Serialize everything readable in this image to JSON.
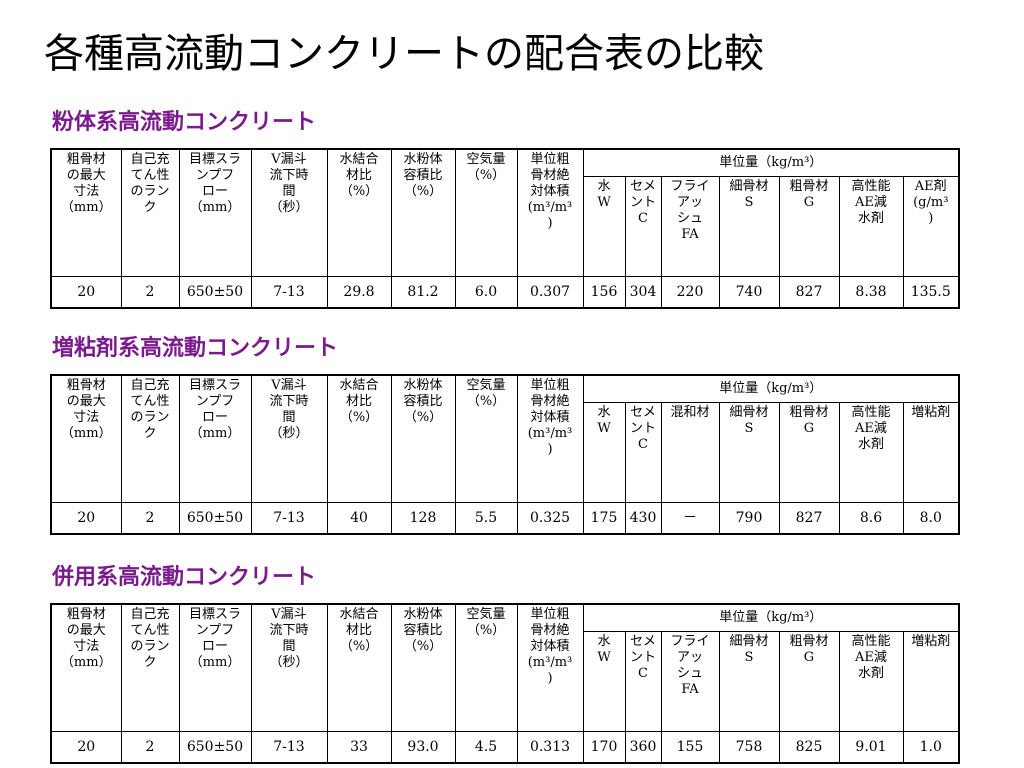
{
  "page_title": "各種高流動コンクリートの配合表の比較",
  "colors": {
    "heading_accent": "#7a1a8c",
    "border": "#000000"
  },
  "sections": [
    {
      "heading": "粉体系高流動コンクリート",
      "headers": [
        [
          "粗骨材",
          "の最大",
          "寸法",
          "（mm）"
        ],
        [
          "自己充",
          "てん性",
          "のラン",
          "ク"
        ],
        [
          "目標スラ",
          "ンプフ",
          "ロー",
          "（mm）"
        ],
        [
          "V漏斗",
          "流下時",
          "間",
          "（秒）"
        ],
        [
          "水結合",
          "材比",
          "（%）"
        ],
        [
          "水粉体",
          "容積比",
          "（%）"
        ],
        [
          "空気量",
          "（%）"
        ],
        [
          "単位粗",
          "骨材絶",
          "対体積",
          "(m³/m³",
          ")"
        ]
      ],
      "unit_group": "単位量（kg/m³）",
      "unit_headers": [
        [
          "水",
          "W"
        ],
        [
          "セメ",
          "ント",
          "C"
        ],
        [
          "フライ",
          "アッ",
          "シュ",
          "FA"
        ],
        [
          "細骨材",
          "S"
        ],
        [
          "粗骨材",
          "G"
        ],
        [
          "高性能",
          "AE減",
          "水剤"
        ],
        [
          "AE剤",
          "(g/m³",
          ")"
        ]
      ],
      "values": [
        "20",
        "2",
        "650±50",
        "7-13",
        "29.8",
        "81.2",
        "6.0",
        "0.307",
        "156",
        "304",
        "220",
        "740",
        "827",
        "8.38",
        "135.5"
      ]
    },
    {
      "heading": "増粘剤系高流動コンクリート",
      "headers": [
        [
          "粗骨材",
          "の最大",
          "寸法",
          "（mm）"
        ],
        [
          "自己充",
          "てん性",
          "のラン",
          "ク"
        ],
        [
          "目標スラ",
          "ンプフ",
          "ロー",
          "（mm）"
        ],
        [
          "V漏斗",
          "流下時",
          "間",
          "（秒）"
        ],
        [
          "水結合",
          "材比",
          "（%）"
        ],
        [
          "水粉体",
          "容積比",
          "（%）"
        ],
        [
          "空気量",
          "（%）"
        ],
        [
          "単位粗",
          "骨材絶",
          "対体積",
          "(m³/m³",
          ")"
        ]
      ],
      "unit_group": "単位量（kg/m³）",
      "unit_headers": [
        [
          "水",
          "W"
        ],
        [
          "セメ",
          "ント",
          "C"
        ],
        [
          "混和材"
        ],
        [
          "細骨材",
          "S"
        ],
        [
          "粗骨材",
          "G"
        ],
        [
          "高性能",
          "AE減",
          "水剤"
        ],
        [
          "増粘剤"
        ]
      ],
      "values": [
        "20",
        "2",
        "650±50",
        "7-13",
        "40",
        "128",
        "5.5",
        "0.325",
        "175",
        "430",
        "－",
        "790",
        "827",
        "8.6",
        "8.0"
      ]
    },
    {
      "heading": "併用系高流動コンクリート",
      "headers": [
        [
          "粗骨材",
          "の最大",
          "寸法",
          "（mm）"
        ],
        [
          "自己充",
          "てん性",
          "のラン",
          "ク"
        ],
        [
          "目標スラ",
          "ンプフ",
          "ロー",
          "（mm）"
        ],
        [
          "V漏斗",
          "流下時",
          "間",
          "（秒）"
        ],
        [
          "水結合",
          "材比",
          "（%）"
        ],
        [
          "水粉体",
          "容積比",
          "（%）"
        ],
        [
          "空気量",
          "（%）"
        ],
        [
          "単位粗",
          "骨材絶",
          "対体積",
          "(m³/m³",
          ")"
        ]
      ],
      "unit_group": "単位量（kg/m³）",
      "unit_headers": [
        [
          "水",
          "W"
        ],
        [
          "セメ",
          "ント",
          "C"
        ],
        [
          "フライ",
          "アッ",
          "シュ",
          "FA"
        ],
        [
          "細骨材",
          "S"
        ],
        [
          "粗骨材",
          "G"
        ],
        [
          "高性能",
          "AE減",
          "水剤"
        ],
        [
          "増粘剤"
        ]
      ],
      "values": [
        "20",
        "2",
        "650±50",
        "7-13",
        "33",
        "93.0",
        "4.5",
        "0.313",
        "170",
        "360",
        "155",
        "758",
        "825",
        "9.01",
        "1.0"
      ]
    }
  ]
}
